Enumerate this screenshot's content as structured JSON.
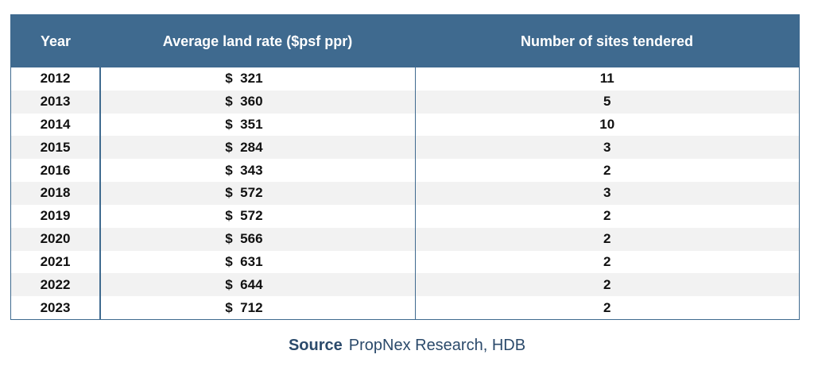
{
  "chart_data": {
    "type": "table",
    "columns": [
      "Year",
      "Average land rate ($psf ppr)",
      "Number of sites tendered"
    ],
    "rows": [
      {
        "year": "2012",
        "currency": "$",
        "rate": "321",
        "sites": "11"
      },
      {
        "year": "2013",
        "currency": "$",
        "rate": "360",
        "sites": "5"
      },
      {
        "year": "2014",
        "currency": "$",
        "rate": "351",
        "sites": "10"
      },
      {
        "year": "2015",
        "currency": "$",
        "rate": "284",
        "sites": "3"
      },
      {
        "year": "2016",
        "currency": "$",
        "rate": "343",
        "sites": "2"
      },
      {
        "year": "2018",
        "currency": "$",
        "rate": "572",
        "sites": "3"
      },
      {
        "year": "2019",
        "currency": "$",
        "rate": "572",
        "sites": "2"
      },
      {
        "year": "2020",
        "currency": "$",
        "rate": "566",
        "sites": "2"
      },
      {
        "year": "2021",
        "currency": "$",
        "rate": "631",
        "sites": "2"
      },
      {
        "year": "2022",
        "currency": "$",
        "rate": "644",
        "sites": "2"
      },
      {
        "year": "2023",
        "currency": "$",
        "rate": "712",
        "sites": "2"
      }
    ]
  },
  "source": {
    "label": "Source",
    "text": "PropNex Research, HDB"
  },
  "colors": {
    "header_bg": "#3f6a8f",
    "stripe": "#f2f2f2",
    "source_text": "#2b4a6b"
  }
}
